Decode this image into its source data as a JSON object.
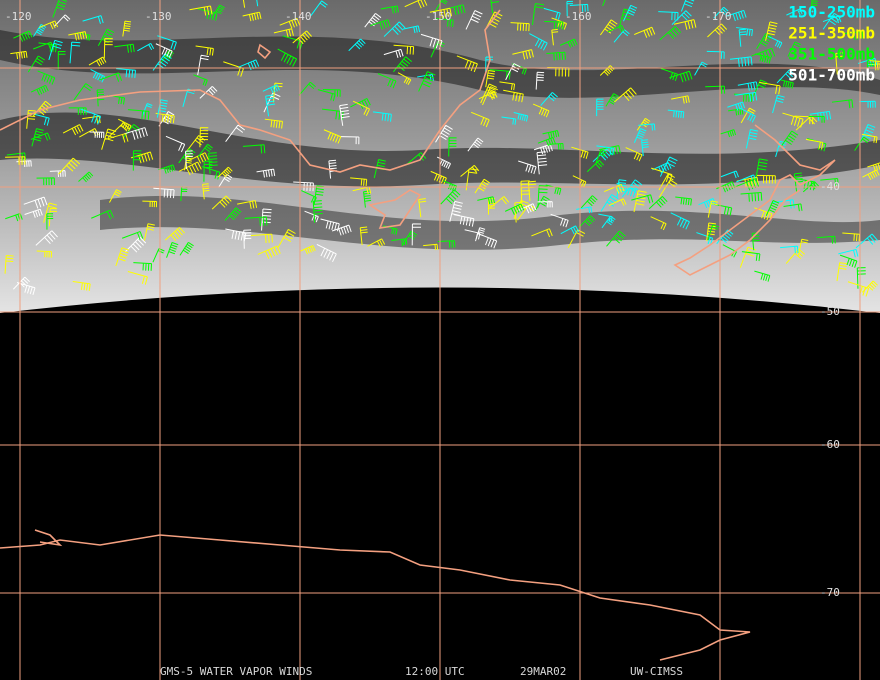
{
  "map": {
    "longitude_labels": [
      "-120",
      "-130",
      "-140",
      "-150",
      "-160",
      "-170"
    ],
    "latitude_labels": [
      "-40",
      "-50",
      "-60",
      "-70"
    ],
    "legend": [
      {
        "label": "150-250mb",
        "color": "#00ffff"
      },
      {
        "label": "251-350mb",
        "color": "#ffff00"
      },
      {
        "label": "351-500mb",
        "color": "#00ff00"
      },
      {
        "label": "501-700mb",
        "color": "#ffffff"
      }
    ],
    "grid_color": "#f0a080",
    "coast_color": "#f4a080",
    "footer": [
      "GMS-5 WATER VAPOR WINDS",
      "12:00 UTC",
      "29MAR02",
      "UW-CIMSS"
    ]
  }
}
